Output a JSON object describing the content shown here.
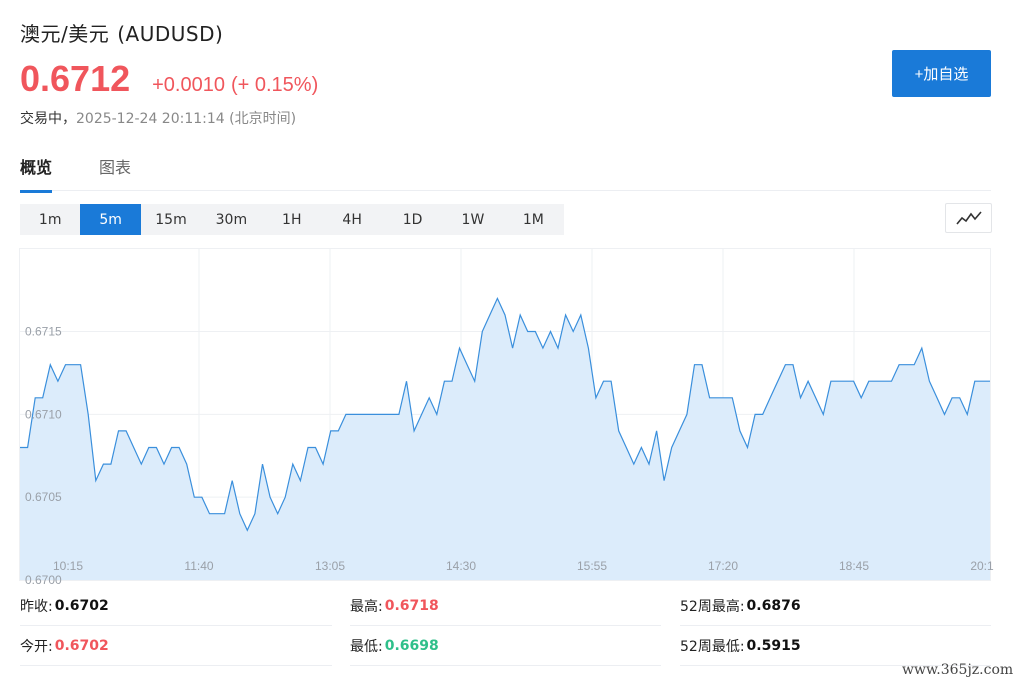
{
  "header": {
    "name": "澳元/美元",
    "code": "(AUDUSD)",
    "price": "0.6712",
    "change": "+0.0010",
    "change_pct": "(+ 0.15%)",
    "status_label": "交易中，",
    "timestamp": "2025-12-24 20:11:14",
    "timezone": "(北京时间)",
    "add_button": "+加自选"
  },
  "tabs": [
    {
      "label": "概览",
      "active": true
    },
    {
      "label": "图表",
      "active": false
    }
  ],
  "periods": [
    {
      "label": "1m",
      "active": false
    },
    {
      "label": "5m",
      "active": true
    },
    {
      "label": "15m",
      "active": false
    },
    {
      "label": "30m",
      "active": false
    },
    {
      "label": "1H",
      "active": false
    },
    {
      "label": "4H",
      "active": false
    },
    {
      "label": "1D",
      "active": false
    },
    {
      "label": "1W",
      "active": false
    },
    {
      "label": "1M",
      "active": false
    }
  ],
  "chart_type_icon": "line-chart-icon",
  "colors": {
    "accent": "#1a7ad8",
    "up": "#f0565c",
    "down": "#2fbf8a",
    "line": "#3a8fdc",
    "area": "#dcecfb"
  },
  "chart_data": {
    "type": "area",
    "x_ticks": [
      "10:15",
      "11:40",
      "13:05",
      "14:30",
      "15:55",
      "17:20",
      "18:45",
      "20:1"
    ],
    "y_ticks": [
      "0.6700",
      "0.6705",
      "0.6710",
      "0.6715"
    ],
    "ylim": [
      0.67,
      0.67195
    ],
    "grid": true,
    "values": [
      0.6708,
      0.6708,
      0.6711,
      0.6711,
      0.6713,
      0.6712,
      0.6713,
      0.6713,
      0.6713,
      0.671,
      0.6706,
      0.6707,
      0.6707,
      0.6709,
      0.6709,
      0.6708,
      0.6707,
      0.6708,
      0.6708,
      0.6707,
      0.6708,
      0.6708,
      0.6707,
      0.6705,
      0.6705,
      0.6704,
      0.6704,
      0.6704,
      0.6706,
      0.6704,
      0.6703,
      0.6704,
      0.6707,
      0.6705,
      0.6704,
      0.6705,
      0.6707,
      0.6706,
      0.6708,
      0.6708,
      0.6707,
      0.6709,
      0.6709,
      0.671,
      0.671,
      0.671,
      0.671,
      0.671,
      0.671,
      0.671,
      0.671,
      0.6712,
      0.6709,
      0.671,
      0.6711,
      0.671,
      0.6712,
      0.6712,
      0.6714,
      0.6713,
      0.6712,
      0.6715,
      0.6716,
      0.6717,
      0.6716,
      0.6714,
      0.6716,
      0.6715,
      0.6715,
      0.6714,
      0.6715,
      0.6714,
      0.6716,
      0.6715,
      0.6716,
      0.6714,
      0.6711,
      0.6712,
      0.6712,
      0.6709,
      0.6708,
      0.6707,
      0.6708,
      0.6707,
      0.6709,
      0.6706,
      0.6708,
      0.6709,
      0.671,
      0.6713,
      0.6713,
      0.6711,
      0.6711,
      0.6711,
      0.6711,
      0.6709,
      0.6708,
      0.671,
      0.671,
      0.6711,
      0.6712,
      0.6713,
      0.6713,
      0.6711,
      0.6712,
      0.6711,
      0.671,
      0.6712,
      0.6712,
      0.6712,
      0.6712,
      0.6711,
      0.6712,
      0.6712,
      0.6712,
      0.6712,
      0.6713,
      0.6713,
      0.6713,
      0.6714,
      0.6712,
      0.6711,
      0.671,
      0.6711,
      0.6711,
      0.671,
      0.6712,
      0.6712,
      0.6712
    ]
  },
  "stats": [
    {
      "label": "昨收:",
      "value": "0.6702",
      "tone": "neutral"
    },
    {
      "label": "最高:",
      "value": "0.6718",
      "tone": "up"
    },
    {
      "label": "52周最高:",
      "value": "0.6876",
      "tone": "neutral"
    },
    {
      "label": "今开:",
      "value": "0.6702",
      "tone": "up"
    },
    {
      "label": "最低:",
      "value": "0.6698",
      "tone": "down"
    },
    {
      "label": "52周最低:",
      "value": "0.5915",
      "tone": "neutral"
    }
  ],
  "watermark": "www.365jz.com"
}
